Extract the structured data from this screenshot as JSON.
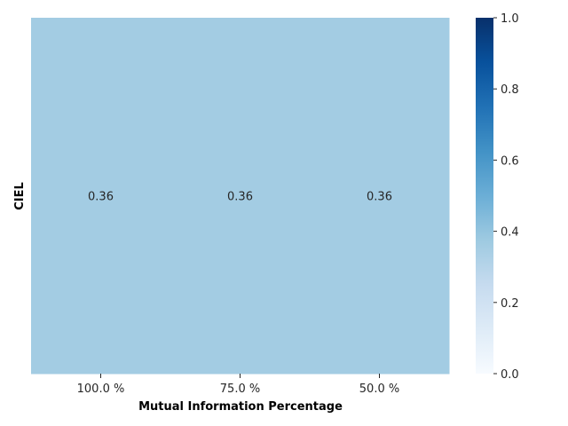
{
  "chart_data": {
    "type": "heatmap",
    "title": "",
    "xlabel": "Mutual Information Percentage",
    "ylabel": "CIEL",
    "x_categories": [
      "100.0 %",
      "75.0 %",
      "50.0 %"
    ],
    "y_categories": [
      ""
    ],
    "values": [
      [
        0.36,
        0.36,
        0.36
      ]
    ],
    "value_labels": [
      "0.36",
      "0.36",
      "0.36"
    ],
    "colormap": "Blues",
    "vmin": 0.0,
    "vmax": 1.0,
    "colorbar": {
      "ticks": [
        0.0,
        0.2,
        0.4,
        0.6,
        0.8,
        1.0
      ],
      "tick_labels": [
        "0.0",
        "0.2",
        "0.4",
        "0.6",
        "0.8",
        "1.0"
      ]
    }
  }
}
